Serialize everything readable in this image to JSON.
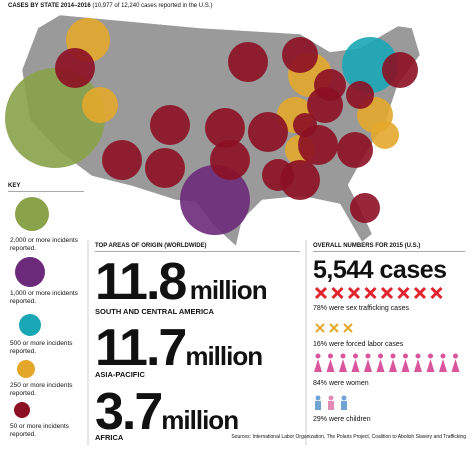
{
  "header": {
    "title": "CASES BY STATE 2014–2016",
    "subtitle": "(10,977 of 12,240 cases reported in the U.S.)"
  },
  "key": {
    "title": "KEY",
    "items": [
      "2,000 or more incidents reported.",
      "1,000 or more incidents reported.",
      "500 or more incidents reported.",
      "250 or more incidents reported.",
      "50 or more incidents reported."
    ]
  },
  "origins": {
    "title": "TOP AREAS OF ORIGIN (WORLDWIDE)",
    "items": [
      {
        "number": "11.8",
        "unit": "million",
        "region": "SOUTH AND CENTRAL AMERICA"
      },
      {
        "number": "11.7",
        "unit": "million",
        "region": "ASIA-PACIFIC"
      },
      {
        "number": "3.7",
        "unit": "million",
        "region": "AFRICA"
      }
    ]
  },
  "overall": {
    "title": "OVERALL NUMBERS FOR 2015 (U.S.)",
    "cases": "5,544 cases",
    "stats": [
      "78% were sex trafficking cases",
      "16% were forced labor cases",
      "84% were women",
      "29% were children"
    ]
  },
  "sources": "Sources: International Labor Organization, The Polaris Project, Coalition to Abolish Slavery and Trafficking"
}
